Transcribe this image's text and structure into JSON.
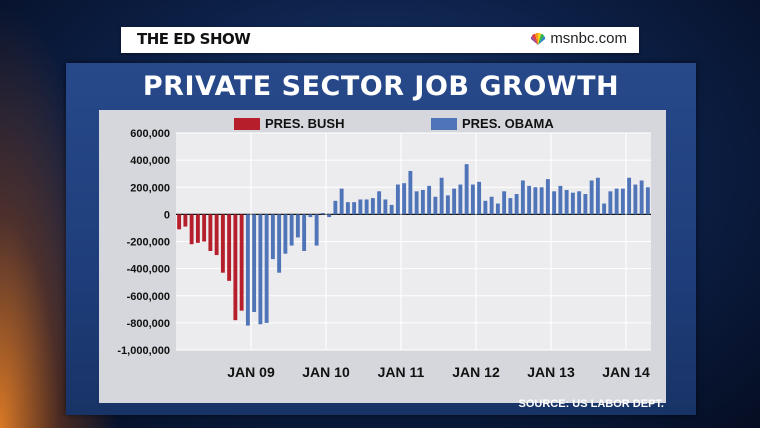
{
  "header": {
    "show_name": "THE ED SHOW",
    "network": "msnbc.com",
    "network_icon": "nbc-peacock-icon"
  },
  "colors": {
    "bush": "#b51e2a",
    "obama": "#4f74b8",
    "plot_bg": "#d5d7dc",
    "panel_bg": "#1f3f7c"
  },
  "chart_data": {
    "type": "bar",
    "title": "PRIVATE SECTOR JOB GROWTH",
    "xlabel": "",
    "ylabel": "",
    "ylim": [
      -1000000,
      600000
    ],
    "yticks": [
      600000,
      400000,
      200000,
      0,
      -200000,
      -400000,
      -600000,
      -800000,
      -1000000
    ],
    "ytick_labels": [
      "600,000",
      "400,000",
      "200,000",
      "0",
      "-200,000",
      "-400,000",
      "-600,000",
      "-800,000",
      "-1,000,000"
    ],
    "xtick_labels": [
      "JAN 09",
      "JAN 10",
      "JAN 11",
      "JAN 12",
      "JAN 13",
      "JAN 14"
    ],
    "xtick_index": [
      12,
      24,
      36,
      48,
      60,
      72
    ],
    "grid": true,
    "legend_position": "top",
    "series": [
      {
        "name": "PRES. BUSH",
        "color": "#b51e2a",
        "values": [
          -110000,
          -90000,
          -220000,
          -210000,
          -200000,
          -270000,
          -300000,
          -430000,
          -490000,
          -780000,
          -710000
        ]
      },
      {
        "name": "PRES. OBAMA",
        "color": "#4f74b8",
        "values": [
          -820000,
          -720000,
          -810000,
          -800000,
          -330000,
          -430000,
          -290000,
          -230000,
          -170000,
          -270000,
          -20000,
          -230000,
          10000,
          -20000,
          100000,
          190000,
          90000,
          90000,
          110000,
          110000,
          120000,
          170000,
          110000,
          70000,
          220000,
          230000,
          320000,
          170000,
          180000,
          210000,
          130000,
          270000,
          140000,
          190000,
          220000,
          370000,
          220000,
          240000,
          100000,
          130000,
          80000,
          170000,
          120000,
          150000,
          250000,
          210000,
          200000,
          200000,
          260000,
          170000,
          210000,
          180000,
          160000,
          170000,
          150000,
          250000,
          270000,
          80000,
          170000,
          190000,
          190000,
          270000,
          220000,
          250000,
          200000
        ]
      }
    ]
  },
  "source": "SOURCE: US LABOR DEPT."
}
